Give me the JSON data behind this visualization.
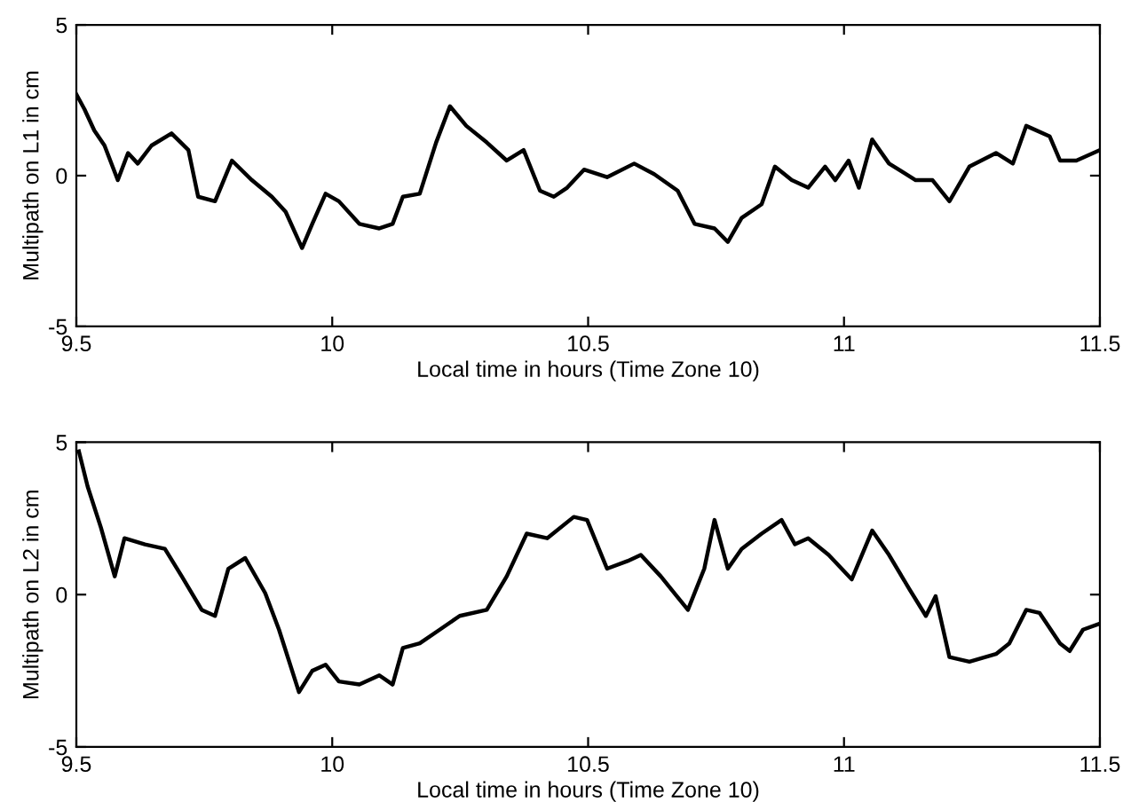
{
  "chart_data": [
    {
      "type": "line",
      "xlabel": "Local time in hours (Time Zone 10)",
      "ylabel": "Multipath on L1 in cm",
      "xlim": [
        9.5,
        11.5
      ],
      "ylim": [
        -5,
        5
      ],
      "xticks": [
        9.5,
        10,
        10.5,
        11,
        11.5
      ],
      "yticks": [
        -5,
        0,
        5
      ],
      "grid": false,
      "legend": false,
      "series": [
        {
          "color": "#000000",
          "x": [
            9.5,
            9.516,
            9.535,
            9.555,
            9.581,
            9.601,
            9.62,
            9.647,
            9.686,
            9.719,
            9.738,
            9.771,
            9.804,
            9.843,
            9.882,
            9.909,
            9.941,
            9.961,
            9.987,
            10.013,
            10.053,
            10.092,
            10.118,
            10.138,
            10.171,
            10.203,
            10.23,
            10.262,
            10.302,
            10.341,
            10.374,
            10.406,
            10.433,
            10.459,
            10.492,
            10.537,
            10.59,
            10.629,
            10.675,
            10.708,
            10.747,
            10.773,
            10.8,
            10.839,
            10.865,
            10.898,
            10.93,
            10.963,
            10.983,
            11.009,
            11.029,
            11.055,
            11.088,
            11.14,
            11.173,
            11.206,
            11.245,
            11.297,
            11.33,
            11.356,
            11.402,
            11.422,
            11.454,
            11.5
          ],
          "values": [
            2.7,
            2.2,
            1.5,
            1.0,
            -0.15,
            0.75,
            0.4,
            1.0,
            1.4,
            0.85,
            -0.7,
            -0.85,
            0.5,
            -0.15,
            -0.7,
            -1.2,
            -2.4,
            -1.6,
            -0.6,
            -0.85,
            -1.6,
            -1.75,
            -1.6,
            -0.7,
            -0.6,
            1.1,
            2.3,
            1.65,
            1.1,
            0.5,
            0.85,
            -0.5,
            -0.7,
            -0.4,
            0.2,
            -0.05,
            0.4,
            0.05,
            -0.5,
            -1.6,
            -1.75,
            -2.2,
            -1.4,
            -0.95,
            0.3,
            -0.15,
            -0.4,
            0.3,
            -0.15,
            0.5,
            -0.4,
            1.2,
            0.4,
            -0.15,
            -0.15,
            -0.85,
            0.3,
            0.75,
            0.4,
            1.65,
            1.3,
            0.5,
            0.5,
            0.85
          ]
        }
      ]
    },
    {
      "type": "line",
      "xlabel": "Local time in hours (Time Zone 10)",
      "ylabel": "Multipath on L2 in cm",
      "xlim": [
        9.5,
        11.5
      ],
      "ylim": [
        -5,
        5
      ],
      "xticks": [
        9.5,
        10,
        10.5,
        11,
        11.5
      ],
      "yticks": [
        -5,
        0,
        5
      ],
      "grid": false,
      "legend": false,
      "series": [
        {
          "color": "#000000",
          "x": [
            9.505,
            9.522,
            9.548,
            9.575,
            9.594,
            9.634,
            9.673,
            9.706,
            9.745,
            9.771,
            9.797,
            9.83,
            9.869,
            9.896,
            9.935,
            9.961,
            9.987,
            10.013,
            10.053,
            10.092,
            10.118,
            10.138,
            10.171,
            10.21,
            10.249,
            10.302,
            10.341,
            10.38,
            10.42,
            10.472,
            10.498,
            10.537,
            10.577,
            10.603,
            10.642,
            10.695,
            10.727,
            10.747,
            10.773,
            10.8,
            10.839,
            10.878,
            10.904,
            10.93,
            10.97,
            11.015,
            11.055,
            11.088,
            11.127,
            11.16,
            11.179,
            11.206,
            11.245,
            11.297,
            11.323,
            11.356,
            11.382,
            11.422,
            11.441,
            11.467,
            11.5
          ],
          "values": [
            4.7,
            3.55,
            2.2,
            0.6,
            1.85,
            1.65,
            1.5,
            0.6,
            -0.5,
            -0.7,
            0.85,
            1.2,
            0.05,
            -1.15,
            -3.2,
            -2.5,
            -2.3,
            -2.85,
            -2.95,
            -2.65,
            -2.95,
            -1.75,
            -1.6,
            -1.15,
            -0.7,
            -0.5,
            0.6,
            2.0,
            1.85,
            2.55,
            2.45,
            0.85,
            1.1,
            1.3,
            0.6,
            -0.5,
            0.85,
            2.45,
            0.85,
            1.5,
            2.0,
            2.45,
            1.65,
            1.85,
            1.3,
            0.5,
            2.1,
            1.3,
            0.2,
            -0.7,
            -0.05,
            -2.05,
            -2.2,
            -1.95,
            -1.6,
            -0.5,
            -0.6,
            -1.6,
            -1.85,
            -1.15,
            -0.95
          ]
        }
      ]
    }
  ]
}
